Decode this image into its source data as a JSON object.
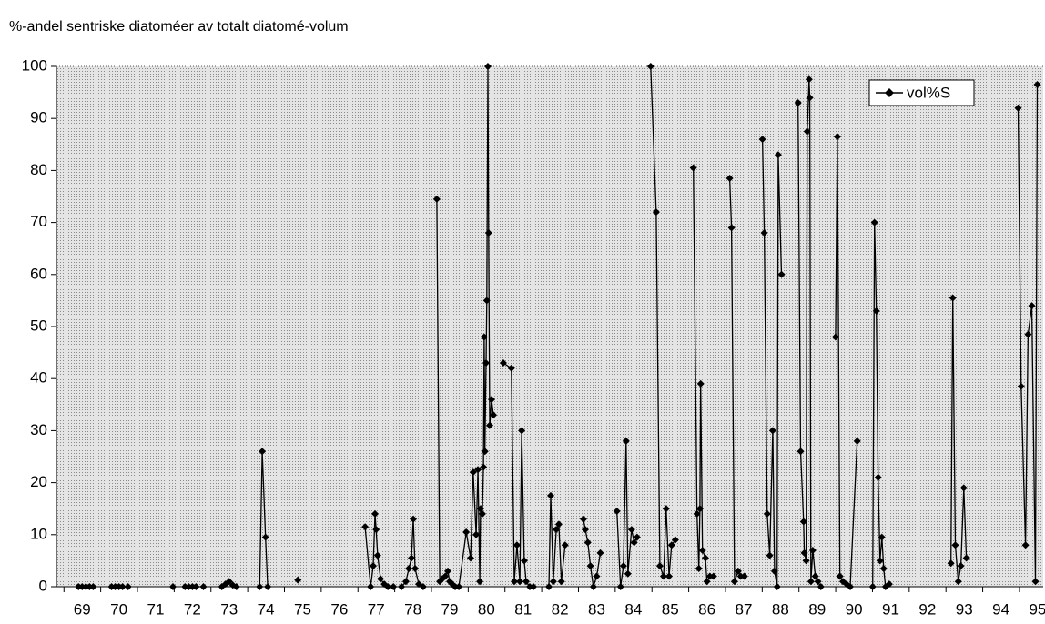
{
  "chart_data": {
    "type": "line",
    "title": "%-andel sentriske diatoméer av totalt diatomé-volum",
    "x": [
      68.9,
      69.0,
      69.1,
      69.2,
      69.3,
      null,
      69.8,
      69.9,
      70.0,
      70.1,
      null,
      70.25,
      null,
      71.47,
      null,
      71.8,
      71.9,
      72.0,
      72.1,
      72.3,
      null,
      72.8,
      72.9,
      73.0,
      73.1,
      73.2,
      null,
      73.83,
      73.9,
      73.99,
      74.05,
      null,
      74.87,
      null,
      76.7,
      76.85,
      76.92,
      76.97,
      77.0,
      77.04,
      77.12,
      77.22,
      77.32,
      77.47,
      null,
      77.69,
      77.81,
      77.89,
      77.96,
      78.01,
      78.06,
      78.16,
      78.28,
      null,
      78.65,
      78.73,
      78.8,
      78.88,
      78.95,
      79.0,
      79.07,
      79.15,
      79.25,
      79.45,
      79.57,
      79.64,
      79.72,
      79.77,
      79.82,
      79.84,
      79.89,
      79.92,
      79.94,
      79.96,
      79.99,
      80.01,
      80.04,
      80.06,
      80.09,
      80.14,
      80.19,
      null,
      80.46,
      80.68,
      80.76,
      80.83,
      80.91,
      80.96,
      81.03,
      81.08,
      81.18,
      81.28,
      null,
      81.7,
      81.75,
      81.82,
      81.9,
      81.97,
      82.04,
      82.14,
      null,
      82.64,
      82.69,
      82.76,
      82.83,
      82.91,
      83.0,
      83.1,
      null,
      83.55,
      83.65,
      83.73,
      83.8,
      83.85,
      83.95,
      84.02,
      84.1,
      null,
      84.47,
      84.62,
      84.72,
      84.82,
      84.89,
      84.97,
      85.04,
      85.14,
      null,
      85.63,
      85.73,
      85.78,
      85.81,
      85.83,
      85.88,
      85.96,
      86.0,
      86.08,
      86.18,
      null,
      86.62,
      86.67,
      86.75,
      86.85,
      86.92,
      87.02,
      null,
      87.51,
      87.56,
      87.64,
      87.71,
      87.79,
      87.84,
      87.91,
      87.94,
      88.03,
      null,
      88.48,
      88.55,
      88.63,
      88.65,
      88.7,
      88.73,
      88.78,
      88.8,
      88.83,
      88.88,
      88.95,
      89.02,
      89.1,
      null,
      89.5,
      89.55,
      89.62,
      89.7,
      89.8,
      89.9,
      90.09,
      null,
      90.51,
      90.56,
      90.61,
      90.66,
      90.71,
      90.76,
      90.81,
      90.86,
      90.96,
      null,
      92.64,
      92.69,
      92.76,
      92.84,
      92.91,
      92.99,
      93.06,
      null,
      94.47,
      94.55,
      94.67,
      94.74,
      94.84,
      94.94,
      94.99
    ],
    "series": [
      {
        "name": "vol%S",
        "color": "#000000",
        "values": [
          0,
          0,
          0,
          0,
          0,
          null,
          0,
          0,
          0,
          0,
          null,
          0,
          null,
          0,
          null,
          0,
          0,
          0,
          0,
          0,
          null,
          0,
          0.5,
          1,
          0.3,
          0,
          null,
          0,
          26,
          9.5,
          0,
          null,
          1.3,
          null,
          11.5,
          0,
          4,
          14,
          11,
          6,
          1.5,
          0.5,
          0,
          0,
          null,
          0,
          1,
          3.5,
          5.5,
          13,
          3.5,
          0.5,
          0,
          null,
          74.5,
          1,
          1.5,
          2,
          3,
          1,
          0.5,
          0,
          0,
          10.5,
          5.5,
          22,
          10,
          22.5,
          1,
          15,
          14,
          23,
          48,
          26,
          43,
          55,
          100,
          68,
          31,
          36,
          33,
          null,
          43,
          42,
          1,
          8,
          1,
          30,
          5,
          1,
          0,
          0,
          null,
          0,
          17.5,
          1,
          11,
          12,
          1,
          8,
          null,
          13,
          11,
          8.5,
          4,
          0,
          2,
          6.5,
          null,
          14.5,
          0,
          4,
          28,
          2.5,
          11,
          8.5,
          9.5,
          null,
          100,
          72,
          4,
          2,
          15,
          2,
          8,
          9,
          null,
          80.5,
          14,
          3.5,
          15,
          39,
          7,
          5.5,
          1,
          2,
          2,
          null,
          78.5,
          69,
          1,
          3,
          2,
          2,
          null,
          86,
          68,
          14,
          6,
          30,
          3,
          0,
          83,
          60,
          null,
          93,
          26,
          12.5,
          6.5,
          5,
          87.5,
          97.5,
          94,
          1,
          7,
          2,
          1,
          0,
          null,
          48,
          86.5,
          2,
          1,
          0.5,
          0,
          28,
          null,
          0,
          70,
          53,
          21,
          5,
          9.5,
          3.5,
          0,
          0.5,
          null,
          4.5,
          55.5,
          8,
          1,
          4,
          19,
          5.5,
          null,
          92,
          38.5,
          8,
          48.5,
          54,
          1,
          96.5
        ]
      }
    ],
    "xlim": [
      68.3,
      95.15
    ],
    "xticks": [
      69,
      70,
      71,
      72,
      73,
      74,
      75,
      76,
      77,
      78,
      79,
      80,
      81,
      82,
      83,
      84,
      85,
      86,
      87,
      88,
      89,
      90,
      91,
      92,
      93,
      94,
      95
    ],
    "ylim": [
      0,
      100
    ],
    "yticks": [
      0,
      10,
      20,
      30,
      40,
      50,
      60,
      70,
      80,
      90,
      100
    ],
    "legend": "top-right"
  }
}
